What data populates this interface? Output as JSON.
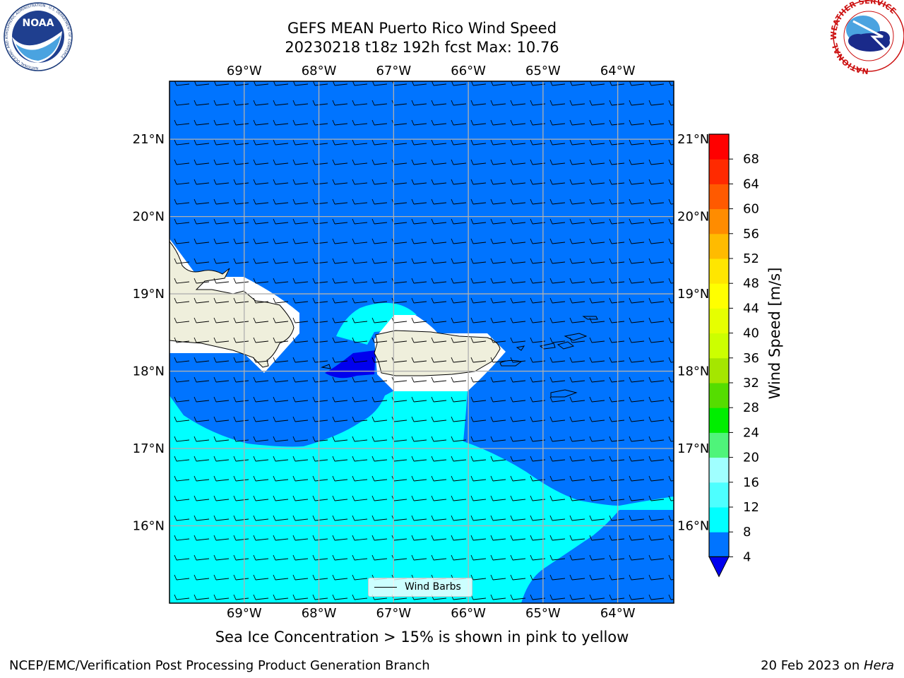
{
  "header": {
    "title_line1": "GEFS MEAN Puerto Rico Wind Speed",
    "title_line2": "20230218 t18z 192h fcst   Max: 10.76"
  },
  "logos": {
    "left": {
      "name": "noaa-logo",
      "text": "NOAA",
      "ring_text": "NATIONAL OCEANIC AND ATMOSPHERIC ADMINISTRATION · U.S. DEPARTMENT OF COMMERCE"
    },
    "right": {
      "name": "nws-logo",
      "ring_text": "NATIONAL WEATHER SERVICE"
    }
  },
  "map": {
    "lon_labels": [
      "69°W",
      "68°W",
      "67°W",
      "66°W",
      "65°W",
      "64°W"
    ],
    "lat_labels": [
      "21°N",
      "20°N",
      "19°N",
      "18°N",
      "17°N",
      "16°N"
    ],
    "lon_range": [
      -70.0,
      -63.25
    ],
    "lat_range": [
      15.0,
      21.75
    ],
    "legend_label": "Wind Barbs",
    "colors": {
      "band_4_8": "#0074ff",
      "band_8_12": "#00ffff",
      "below_4": "#0000ee",
      "land": "#efefdc",
      "masked": "#ffffff"
    }
  },
  "colorbar": {
    "label": "Wind Speed [m/s]",
    "ticks": [
      "4",
      "8",
      "12",
      "16",
      "20",
      "24",
      "28",
      "32",
      "36",
      "40",
      "44",
      "48",
      "52",
      "56",
      "60",
      "64",
      "68"
    ],
    "colors": [
      "#0074ff",
      "#00ffff",
      "#4dffff",
      "#a0ffff",
      "#4ff47a",
      "#00ee00",
      "#55dd00",
      "#a5e600",
      "#ccff00",
      "#e6ff00",
      "#ffff00",
      "#ffe600",
      "#ffbb00",
      "#ff8c00",
      "#ff5a00",
      "#ff2a00",
      "#ff0000"
    ],
    "extend_color": "#0000ee"
  },
  "footer": {
    "caption": "Sea Ice Concentration > 15% is shown in pink to yellow",
    "left": "NCEP/EMC/Verification Post Processing Product Generation Branch",
    "right_date": "20 Feb 2023 on ",
    "right_machine": "Hera"
  }
}
